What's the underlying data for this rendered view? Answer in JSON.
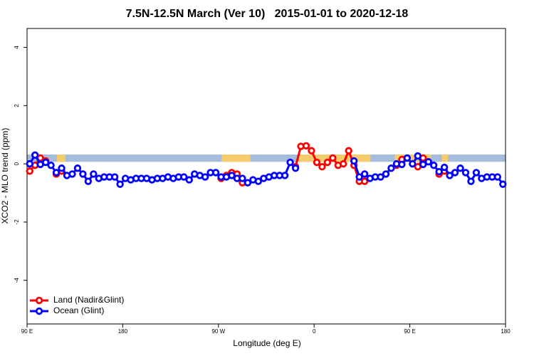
{
  "chart_data": {
    "type": "line",
    "title": "7.5N-12.5N March (Ver 10)   2015-01-01 to 2020-12-18",
    "x_label": "Longitude (deg E)",
    "y_label": "XCO2 - MLO trend (ppm)",
    "xlim": [
      90,
      540
    ],
    "ylim": [
      -5.5,
      4.65
    ],
    "xticks": [
      {
        "value": 90,
        "label": "90 E"
      },
      180,
      {
        "value": 270,
        "label": "90 W"
      },
      {
        "value": 360,
        "label": "0"
      },
      {
        "value": 450,
        "label": "90 E"
      },
      {
        "value": 540,
        "label": "180"
      }
    ],
    "yticks": [
      -4,
      -2,
      0,
      2,
      4
    ],
    "legend": "bottom-left",
    "band": {
      "ylim": [
        0.07,
        0.32
      ],
      "color": "#a5bcdc",
      "land_color": "#f7cd6c",
      "land": [
        [
          118,
          126
        ],
        [
          273,
          300
        ],
        [
          346,
          413
        ],
        [
          436,
          470
        ],
        [
          480,
          486
        ]
      ]
    },
    "x": [
      92.5,
      97.5,
      102.5,
      107.5,
      112.5,
      117.5,
      122.5,
      127.5,
      132.5,
      137.5,
      142.5,
      147.5,
      152.5,
      157.5,
      162.5,
      167.5,
      172.5,
      177.5,
      182.5,
      187.5,
      192.5,
      197.5,
      202.5,
      207.5,
      212.5,
      217.5,
      222.5,
      227.5,
      232.5,
      237.5,
      242.5,
      247.5,
      252.5,
      257.5,
      262.5,
      267.5,
      272.5,
      277.5,
      282.5,
      287.5,
      292.5,
      297.5,
      302.5,
      307.5,
      312.5,
      317.5,
      322.5,
      327.5,
      332.5,
      337.5,
      342.5,
      347.5,
      352.5,
      357.5,
      362.5,
      367.5,
      372.5,
      377.5,
      382.5,
      387.5,
      392.5,
      397.5,
      402.5,
      407.5,
      412.5,
      417.5,
      422.5,
      427.5,
      432.5,
      437.5,
      442.5,
      447.5,
      452.5,
      457.5,
      462.5,
      467.5,
      472.5,
      477.5,
      482.5,
      487.5,
      492.5,
      497.5,
      502.5,
      507.5,
      512.5,
      517.5,
      522.5,
      527.5,
      532.5,
      537.5
    ],
    "series": [
      {
        "name": "Land (Nadir&Glint)",
        "color": "#ff0000",
        "values": [
          -0.25,
          -0.05,
          0.2,
          0.1,
          null,
          -0.35,
          -0.25,
          null,
          null,
          null,
          null,
          null,
          null,
          null,
          null,
          null,
          null,
          null,
          null,
          null,
          null,
          null,
          null,
          null,
          null,
          null,
          null,
          null,
          null,
          null,
          null,
          null,
          null,
          null,
          null,
          null,
          -0.5,
          -0.4,
          -0.3,
          -0.35,
          -0.65,
          null,
          null,
          null,
          null,
          null,
          null,
          null,
          null,
          null,
          -0.1,
          0.6,
          0.62,
          0.45,
          0.05,
          -0.1,
          0.05,
          0.2,
          -0.05,
          0.0,
          0.45,
          -0.05,
          -0.6,
          -0.6,
          null,
          null,
          null,
          null,
          null,
          -0.05,
          0.15,
          null,
          null,
          -0.1,
          0.2,
          null,
          null,
          -0.35,
          -0.25,
          null,
          null,
          null,
          null,
          null,
          null,
          null,
          null,
          null,
          null,
          null
        ]
      },
      {
        "name": "Ocean (Glint)",
        "color": "#0000ff",
        "values": [
          0.0,
          0.3,
          -0.02,
          0.05,
          -0.05,
          -0.3,
          -0.15,
          -0.4,
          -0.35,
          -0.15,
          -0.35,
          -0.6,
          -0.35,
          -0.5,
          -0.45,
          -0.45,
          -0.45,
          -0.7,
          -0.5,
          -0.55,
          -0.5,
          -0.5,
          -0.5,
          -0.55,
          -0.5,
          -0.5,
          -0.45,
          -0.5,
          -0.45,
          -0.45,
          -0.55,
          -0.35,
          -0.4,
          -0.45,
          -0.3,
          -0.3,
          -0.45,
          -0.45,
          -0.4,
          -0.5,
          -0.5,
          -0.65,
          -0.55,
          -0.6,
          -0.5,
          -0.45,
          -0.4,
          -0.4,
          -0.4,
          0.05,
          -0.15,
          null,
          null,
          null,
          null,
          null,
          null,
          null,
          null,
          null,
          null,
          0.1,
          -0.45,
          -0.35,
          -0.5,
          -0.45,
          -0.45,
          -0.35,
          -0.15,
          0.0,
          -0.02,
          0.2,
          0.0,
          0.27,
          -0.02,
          0.07,
          -0.05,
          -0.27,
          -0.12,
          -0.4,
          -0.3,
          -0.15,
          -0.3,
          -0.6,
          -0.3,
          -0.5,
          -0.45,
          -0.45,
          -0.45,
          -0.7
        ]
      }
    ]
  }
}
